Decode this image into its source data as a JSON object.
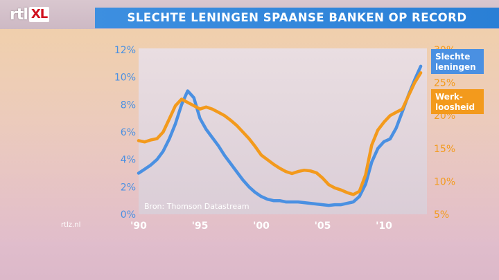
{
  "header": {
    "logo_main": "rtl",
    "logo_sub": "XL",
    "title": "SLECHTE LENINGEN SPAANSE BANKEN OP RECORD"
  },
  "footer": {
    "url": "rtlz.nl"
  },
  "colors": {
    "series_blue": "#4a90e2",
    "series_orange": "#f39a1c",
    "title_bar": "#2a7fd6"
  },
  "chart_data": {
    "type": "line",
    "title": "SLECHTE LENINGEN SPAANSE BANKEN OP RECORD",
    "source": "Bron: Thomson Datastream",
    "x_ticks": [
      "'90",
      "'95",
      "'00",
      "'05",
      "'10"
    ],
    "x_tick_values": [
      1990,
      1995,
      2000,
      2005,
      2010
    ],
    "xlim": [
      1990,
      2013.5
    ],
    "y_left": {
      "ticks": [
        "0%",
        "2%",
        "4%",
        "6%",
        "8%",
        "10%",
        "12%"
      ],
      "range": [
        0,
        12
      ]
    },
    "y_right": {
      "ticks": [
        "5%",
        "10%",
        "15%",
        "20%",
        "25%",
        "30%"
      ],
      "range": [
        5,
        30
      ]
    },
    "grid": false,
    "series": [
      {
        "name": "Slechte leningen",
        "label": [
          "Slechte",
          "leningen"
        ],
        "axis": "left",
        "color": "#4a90e2",
        "x": [
          1990,
          1990.5,
          1991,
          1991.5,
          1992,
          1992.5,
          1993,
          1993.5,
          1994,
          1994.5,
          1995,
          1995.5,
          1996,
          1996.5,
          1997,
          1997.5,
          1998,
          1998.5,
          1999,
          1999.5,
          2000,
          2000.5,
          2001,
          2001.5,
          2002,
          2002.5,
          2003,
          2003.5,
          2004,
          2004.5,
          2005,
          2005.5,
          2006,
          2006.5,
          2007,
          2007.5,
          2008,
          2008.5,
          2009,
          2009.5,
          2010,
          2010.5,
          2011,
          2011.5,
          2012,
          2012.5,
          2013
        ],
        "values": [
          3.0,
          3.3,
          3.6,
          4.0,
          4.6,
          5.5,
          6.6,
          8.0,
          9.0,
          8.5,
          7.0,
          6.2,
          5.6,
          5.0,
          4.3,
          3.7,
          3.1,
          2.5,
          2.0,
          1.6,
          1.3,
          1.1,
          1.0,
          1.0,
          0.9,
          0.9,
          0.9,
          0.85,
          0.8,
          0.75,
          0.7,
          0.65,
          0.7,
          0.7,
          0.8,
          0.9,
          1.3,
          2.2,
          3.8,
          4.8,
          5.3,
          5.5,
          6.3,
          7.5,
          8.7,
          9.8,
          10.8
        ]
      },
      {
        "name": "Werkloosheid",
        "label": [
          "Werk-",
          "loosheid"
        ],
        "axis": "right",
        "color": "#f39a1c",
        "x": [
          1990,
          1990.5,
          1991,
          1991.5,
          1992,
          1992.5,
          1993,
          1993.5,
          1994,
          1994.5,
          1995,
          1995.5,
          1996,
          1996.5,
          1997,
          1997.5,
          1998,
          1998.5,
          1999,
          1999.5,
          2000,
          2000.5,
          2001,
          2001.5,
          2002,
          2002.5,
          2003,
          2003.5,
          2004,
          2004.5,
          2005,
          2005.5,
          2006,
          2006.5,
          2007,
          2007.5,
          2008,
          2008.5,
          2009,
          2009.5,
          2010,
          2010.5,
          2011,
          2011.5,
          2012,
          2012.5,
          2013
        ],
        "values": [
          16.2,
          16.0,
          16.3,
          16.5,
          17.5,
          19.5,
          21.5,
          22.5,
          22.0,
          21.5,
          21.0,
          21.3,
          21.0,
          20.5,
          20.0,
          19.3,
          18.5,
          17.5,
          16.5,
          15.3,
          14.0,
          13.3,
          12.6,
          12.0,
          11.5,
          11.2,
          11.5,
          11.7,
          11.6,
          11.3,
          10.5,
          9.5,
          9.0,
          8.7,
          8.3,
          8.0,
          8.5,
          11.0,
          15.5,
          17.8,
          19.0,
          20.0,
          20.5,
          21.0,
          23.0,
          25.0,
          26.5
        ]
      }
    ]
  }
}
